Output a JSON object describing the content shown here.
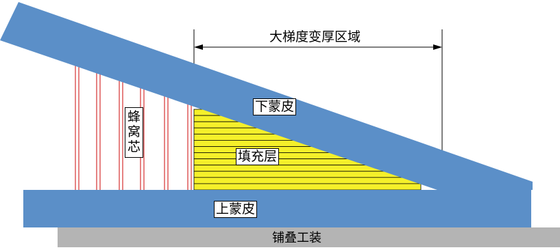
{
  "labels": {
    "dimension": "大梯度变厚区域",
    "lower_skin": "下蒙皮",
    "upper_skin": "上蒙皮",
    "honeycomb_core": "蜂窝芯",
    "filler_layer": "填充层",
    "layup_tooling": "铺叠工装"
  },
  "colors": {
    "skin": "#5b8fc8",
    "filler": "#f5f02a",
    "core_line": "#d62f2f",
    "tooling": "#b4b4b4"
  }
}
